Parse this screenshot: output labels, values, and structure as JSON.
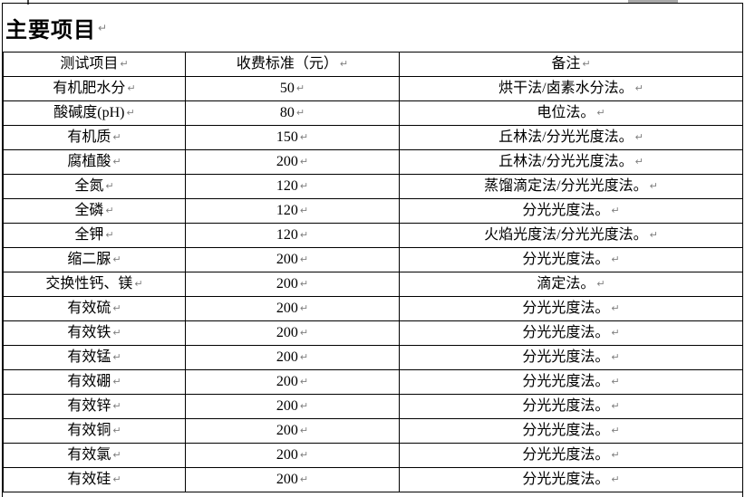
{
  "page": {
    "title": "主要项目",
    "paragraph_mark": "↵"
  },
  "table": {
    "columns": [
      "测试项目",
      "收费标准（元）",
      "备注"
    ],
    "rows": [
      {
        "item": "有机肥水分",
        "fee": "50",
        "note": "烘干法/卤素水分法。"
      },
      {
        "item": "酸碱度(pH)",
        "fee": "80",
        "note": "电位法。"
      },
      {
        "item": "有机质",
        "fee": "150",
        "note": "丘林法/分光光度法。"
      },
      {
        "item": "腐植酸",
        "fee": "200",
        "note": "丘林法/分光光度法。"
      },
      {
        "item": "全氮",
        "fee": "120",
        "note": "蒸馏滴定法/分光光度法。"
      },
      {
        "item": "全磷",
        "fee": "120",
        "note": "分光光度法。"
      },
      {
        "item": "全钾",
        "fee": "120",
        "note": "火焰光度法/分光光度法。"
      },
      {
        "item": "缩二脲",
        "fee": "200",
        "note": "分光光度法。"
      },
      {
        "item": "交换性钙、镁",
        "fee": "200",
        "note": "滴定法。"
      },
      {
        "item": "有效硫",
        "fee": "200",
        "note": "分光光度法。"
      },
      {
        "item": "有效铁",
        "fee": "200",
        "note": "分光光度法。"
      },
      {
        "item": "有效锰",
        "fee": "200",
        "note": "分光光度法。"
      },
      {
        "item": "有效硼",
        "fee": "200",
        "note": "分光光度法。"
      },
      {
        "item": "有效锌",
        "fee": "200",
        "note": "分光光度法。"
      },
      {
        "item": "有效铜",
        "fee": "200",
        "note": "分光光度法。"
      },
      {
        "item": "有效氯",
        "fee": "200",
        "note": "分光光度法。"
      },
      {
        "item": "有效硅",
        "fee": "200",
        "note": "分光光度法。"
      }
    ]
  }
}
